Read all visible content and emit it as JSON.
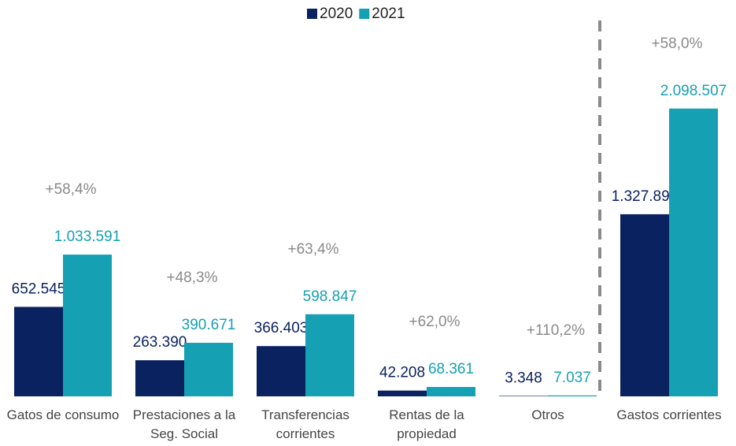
{
  "chart_data": {
    "type": "bar",
    "categories": [
      "Gatos de consumo",
      "Prestaciones a la Seg. Social",
      "Transferencias corrientes",
      "Rentas de la propiedad",
      "Otros",
      "Gastos corrientes"
    ],
    "series": [
      {
        "name": "2020",
        "color": "#0b2260",
        "values": [
          652545,
          263390,
          366403,
          42208,
          3348,
          1327893
        ],
        "value_labels": [
          "652.545",
          "263.390",
          "366.403",
          "42.208",
          "3.348",
          "1.327.893"
        ]
      },
      {
        "name": "2021",
        "color": "#16a0b3",
        "values": [
          1033591,
          390671,
          598847,
          68361,
          7037,
          2098507
        ],
        "value_labels": [
          "1.033.591",
          "390.671",
          "598.847",
          "68.361",
          "7.037",
          "2.098.507"
        ]
      }
    ],
    "annotations": [
      "+58,4%",
      "+48,3%",
      "+63,4%",
      "+62,0%",
      "+110,2%",
      "+58,0%"
    ],
    "ylim": [
      0,
      2890000
    ],
    "legend": "top"
  }
}
